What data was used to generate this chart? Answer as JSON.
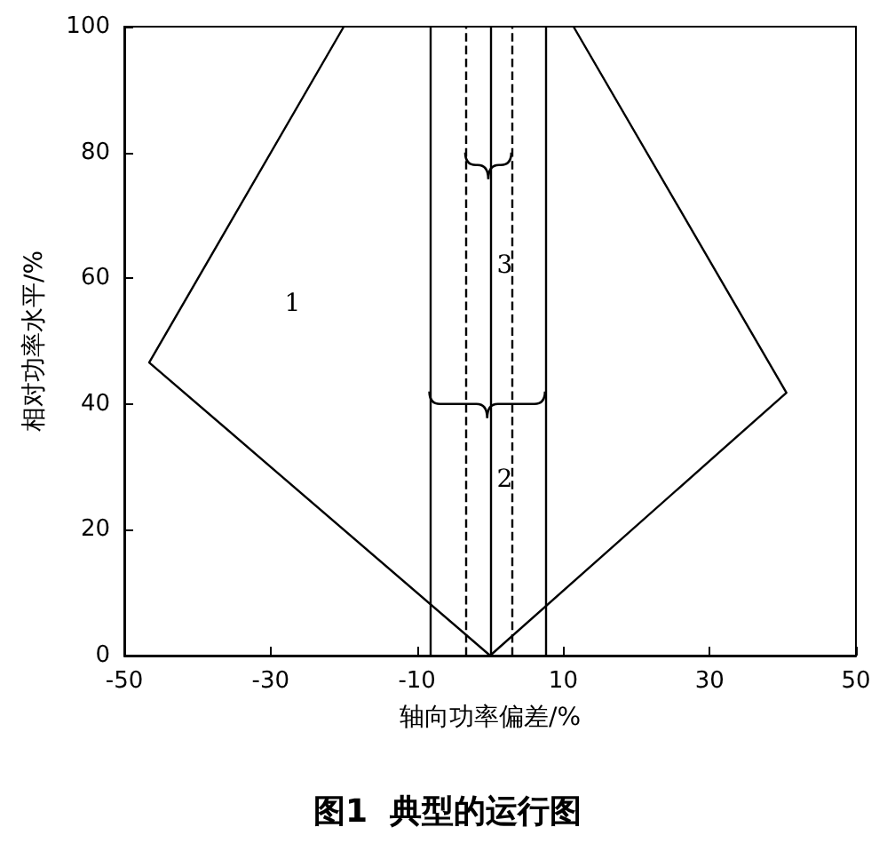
{
  "chart_data": {
    "type": "line",
    "title": "图1  典型的运行图",
    "annotations": [
      "1",
      "2",
      "3"
    ],
    "xlabel": "轴向功率偏差/%",
    "ylabel": "相对功率水平/%",
    "series": [
      {
        "color": "#000000",
        "x": [
          -20,
          -46.6,
          0,
          40.5,
          11.4
        ],
        "values": [
          100,
          46.6,
          0,
          41.8,
          100
        ]
      }
    ],
    "ref_lines": [
      {
        "axis": "x",
        "value": -8.3,
        "color": "#000000",
        "line_style": "solid"
      },
      {
        "axis": "x",
        "value": -3.4,
        "color": "#000000",
        "line_style": "dashed"
      },
      {
        "axis": "x",
        "value": 0,
        "color": "#000000",
        "line_style": "solid"
      },
      {
        "axis": "x",
        "value": 2.9,
        "color": "#000000",
        "line_style": "dashed"
      },
      {
        "axis": "x",
        "value": 7.5,
        "color": "#000000",
        "line_style": "solid"
      }
    ],
    "xlim": [
      -50,
      50
    ],
    "xticks": [
      -50,
      -30,
      -10,
      10,
      30,
      50
    ],
    "ylim": [
      0,
      100
    ],
    "yticks": [
      0,
      20,
      40,
      60,
      80,
      100
    ],
    "grid": false,
    "marker": "none",
    "line_style": "solid"
  }
}
